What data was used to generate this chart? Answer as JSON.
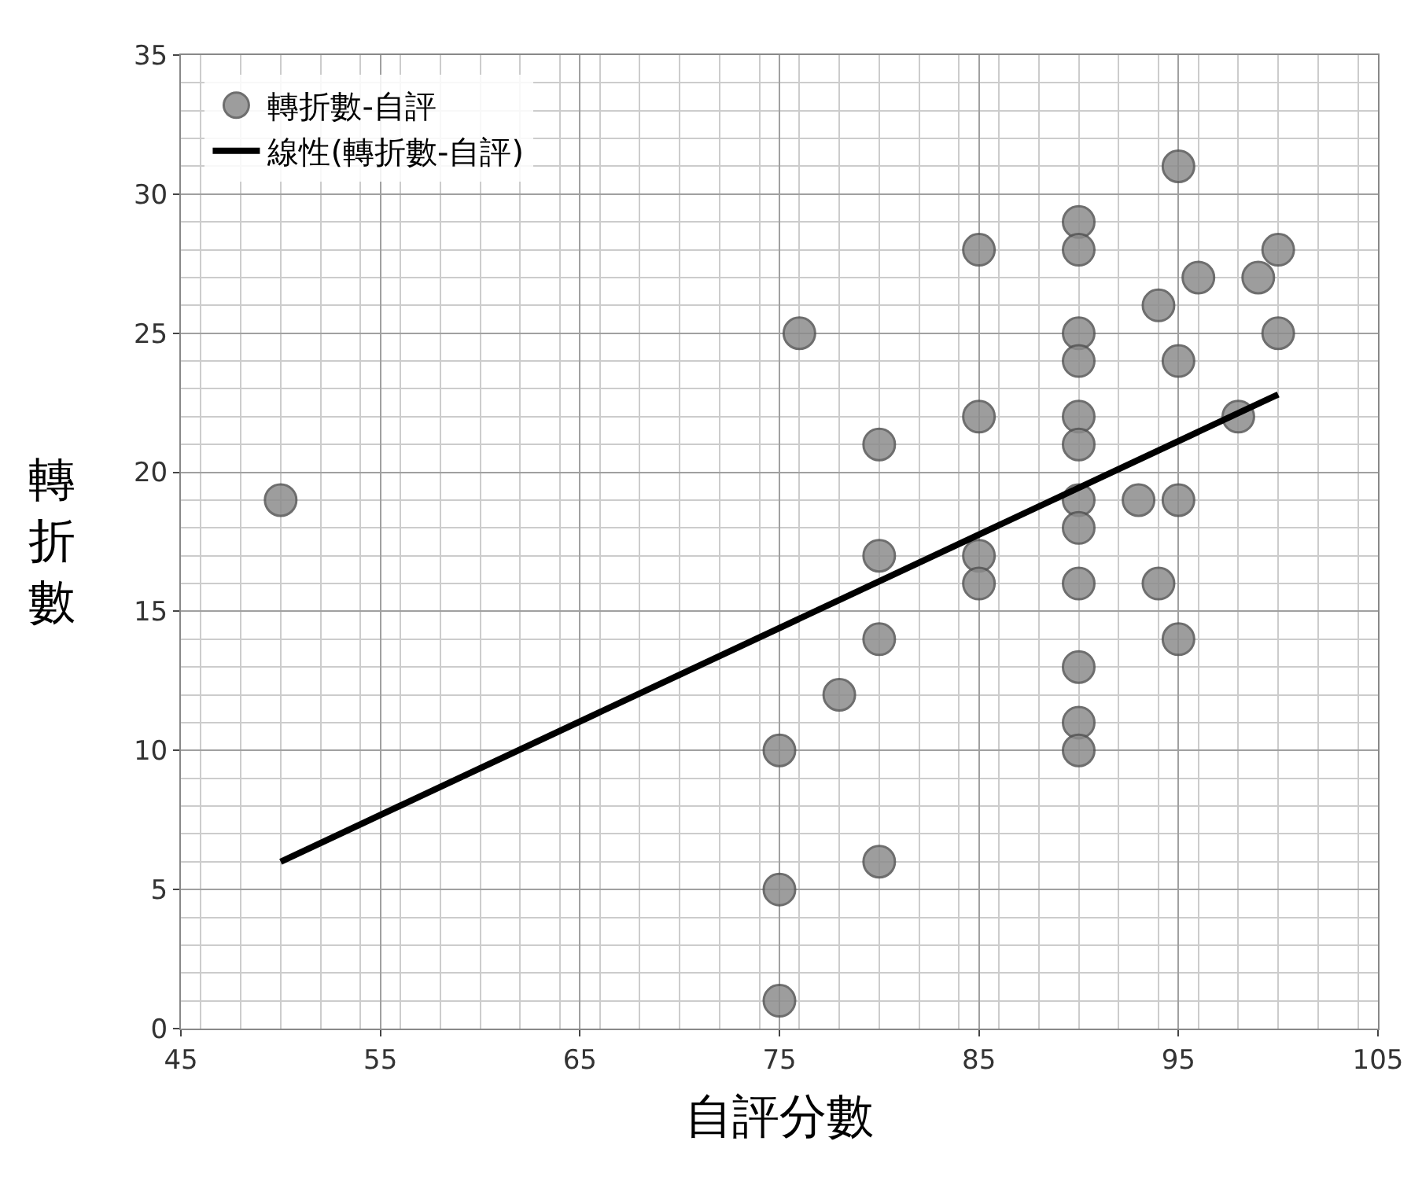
{
  "chart_data": {
    "type": "scatter",
    "xlabel": "自評分數",
    "ylabel": "轉折數",
    "xlim": [
      45,
      105
    ],
    "xticks": [
      45,
      55,
      65,
      75,
      85,
      95,
      105
    ],
    "ylim": [
      0,
      35
    ],
    "yticks": [
      0,
      5,
      10,
      15,
      20,
      25,
      30,
      35
    ],
    "grid": true,
    "legend": "top left",
    "series": [
      {
        "name": "轉折數-自評",
        "marker": "circle",
        "color": "#8c8c8c",
        "x": [
          50,
          75,
          75,
          75,
          76,
          78,
          80,
          80,
          80,
          80,
          85,
          85,
          85,
          85,
          90,
          90,
          90,
          90,
          90,
          90,
          90,
          90,
          90,
          90,
          90,
          90,
          93,
          94,
          94,
          95,
          95,
          95,
          95,
          96,
          98,
          99,
          100,
          100
        ],
        "values": [
          19,
          10,
          5,
          1,
          25,
          12,
          21,
          17,
          14,
          6,
          28,
          22,
          17,
          16,
          29,
          28,
          25,
          24,
          22,
          21,
          19,
          18,
          16,
          13,
          11,
          10,
          19,
          26,
          16,
          31,
          24,
          19,
          14,
          27,
          22,
          27,
          28,
          25
        ]
      },
      {
        "name": "線性(轉折數-自評)",
        "type": "line",
        "marker": "none",
        "color": "#000000",
        "x": [
          50,
          100
        ],
        "values": [
          6,
          22.8
        ]
      }
    ]
  }
}
